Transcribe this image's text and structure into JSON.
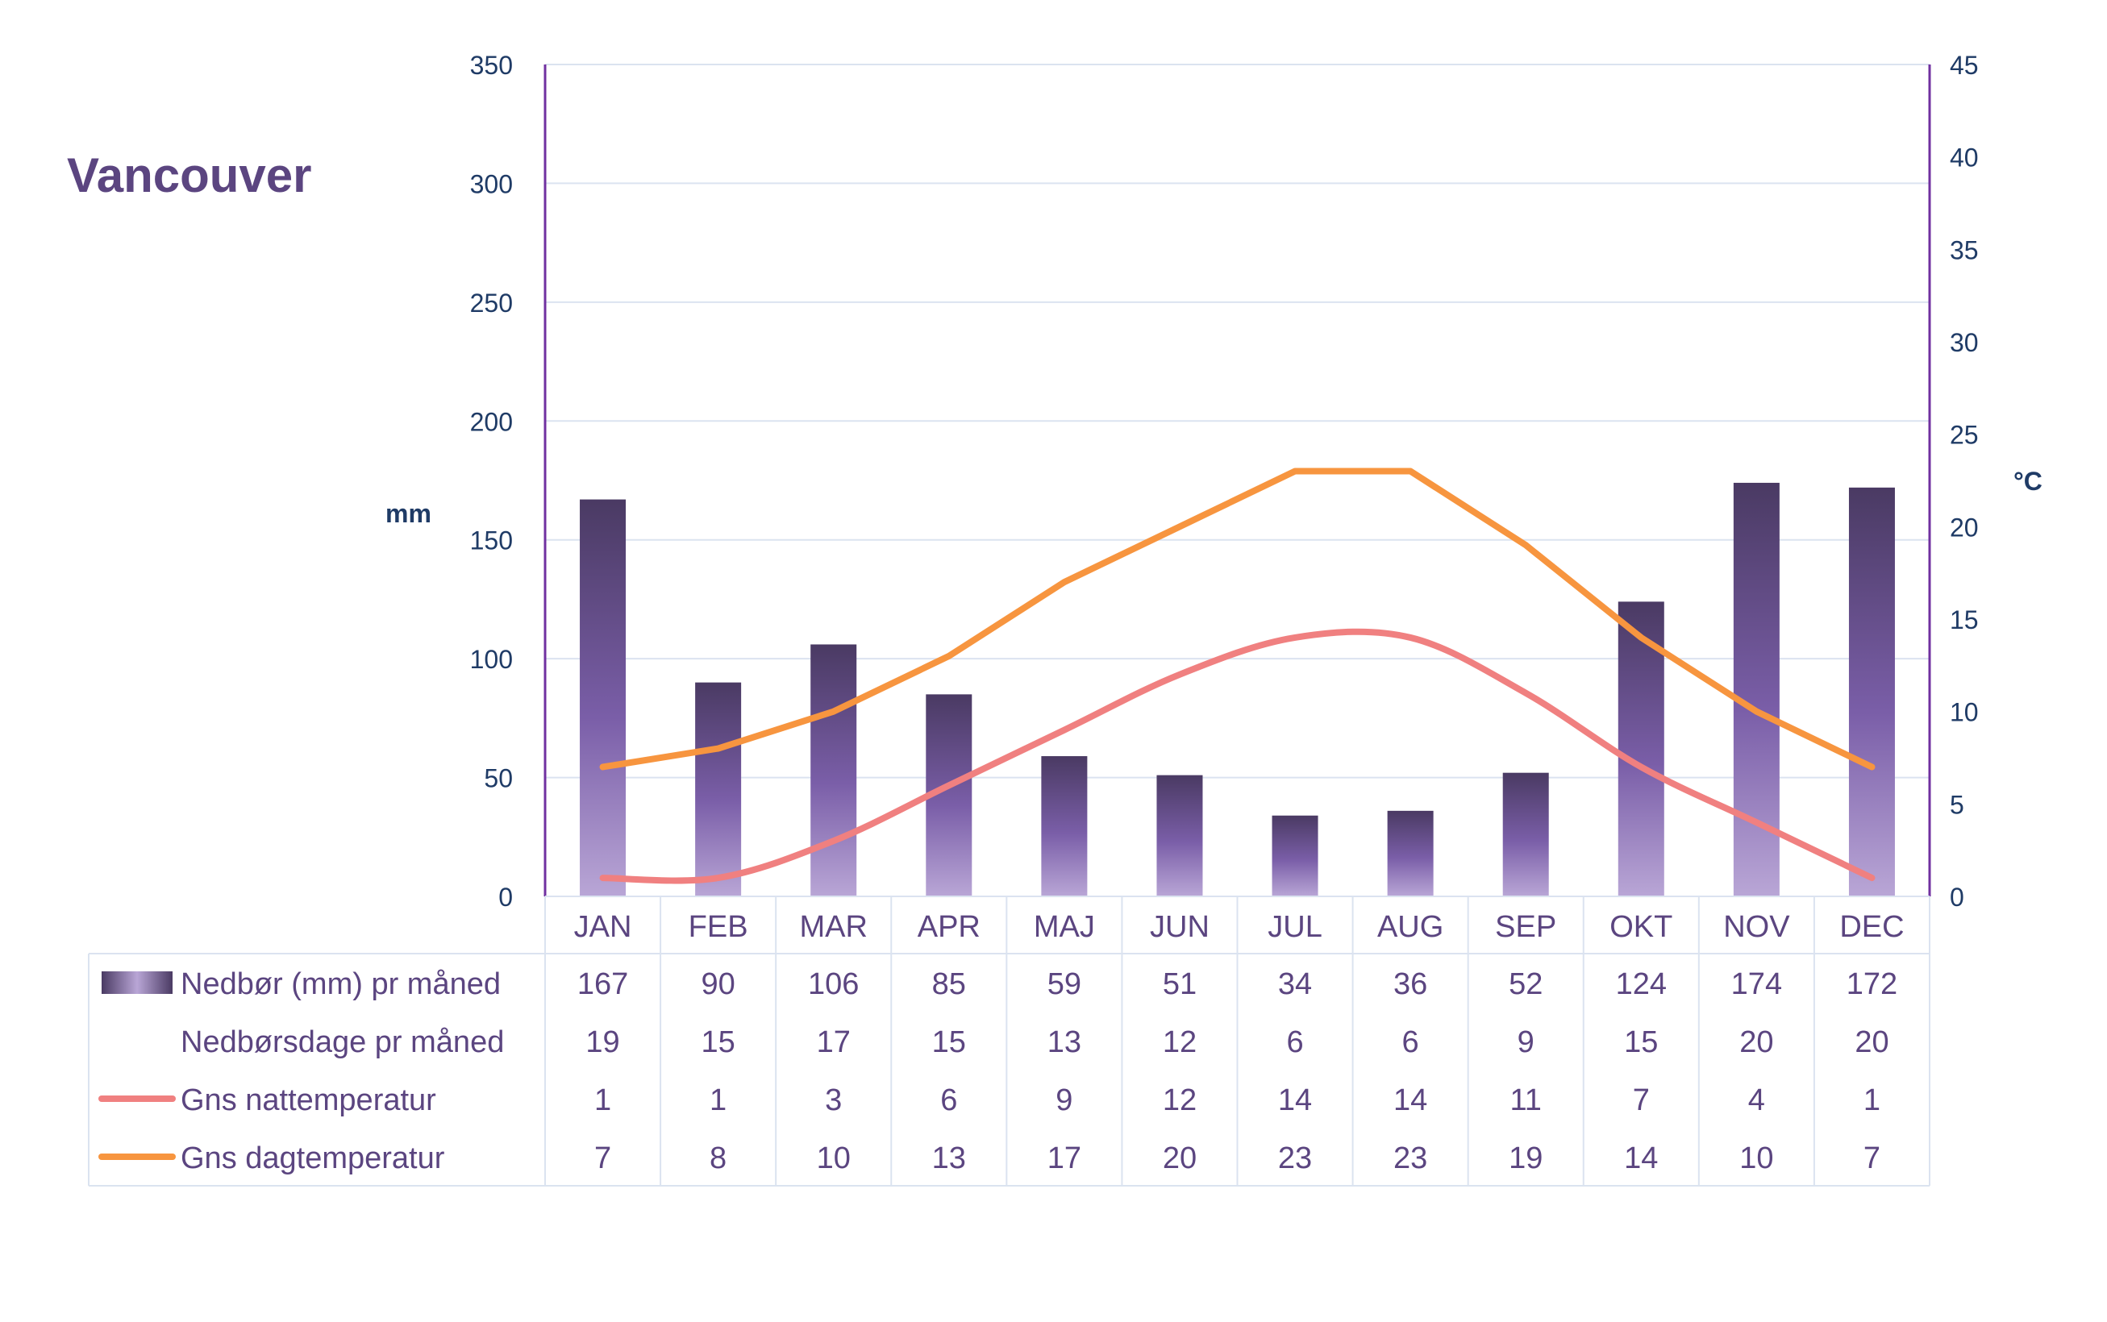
{
  "chart_data": {
    "type": "bar",
    "title": "Vancouver",
    "categories": [
      "JAN",
      "FEB",
      "MAR",
      "APR",
      "MAJ",
      "JUN",
      "JUL",
      "AUG",
      "SEP",
      "OKT",
      "NOV",
      "DEC"
    ],
    "left_axis": {
      "label": "mm",
      "ylim": [
        0,
        350
      ],
      "ticks": [
        0,
        50,
        100,
        150,
        200,
        250,
        300,
        350
      ]
    },
    "right_axis": {
      "label": "°C",
      "ylim": [
        0,
        45
      ],
      "ticks": [
        0,
        5,
        10,
        15,
        20,
        25,
        30,
        35,
        40,
        45
      ]
    },
    "grid": true,
    "legend_placement": "bottom-table",
    "series": [
      {
        "name": "Nedbør (mm) pr måned",
        "type": "bar",
        "axis": "left",
        "color": "#5b4580",
        "values": [
          167,
          90,
          106,
          85,
          59,
          51,
          34,
          36,
          52,
          124,
          174,
          172
        ]
      },
      {
        "name": "Nedbørsdage pr måned",
        "type": "table-only",
        "values": [
          19,
          15,
          17,
          15,
          13,
          12,
          6,
          6,
          9,
          15,
          20,
          20
        ]
      },
      {
        "name": "Gns nattemperatur",
        "type": "line",
        "axis": "right",
        "color": "#f08080",
        "values": [
          1,
          1,
          3,
          6,
          9,
          12,
          14,
          14,
          11,
          7,
          4,
          1
        ]
      },
      {
        "name": "Gns dagtemperatur",
        "type": "line",
        "axis": "right",
        "color": "#f7953f",
        "values": [
          7,
          8,
          10,
          13,
          17,
          20,
          23,
          23,
          19,
          14,
          10,
          7
        ]
      }
    ]
  }
}
